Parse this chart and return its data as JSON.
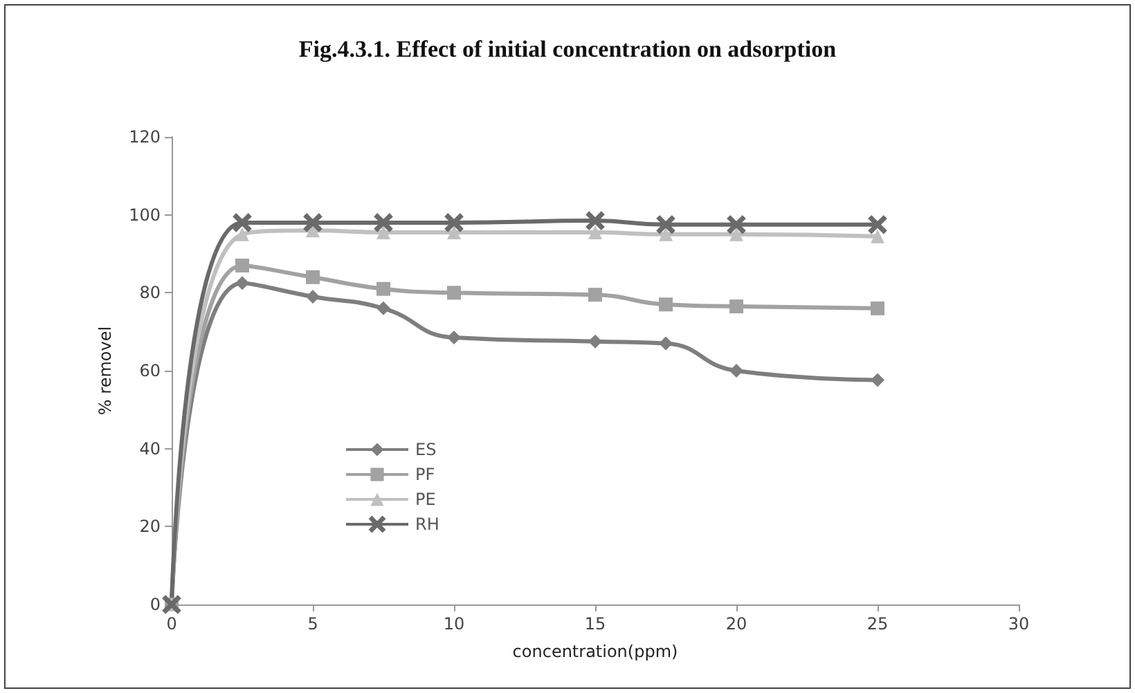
{
  "chart_data": {
    "type": "line",
    "title": "Fig.4.3.1. Effect of initial concentration on adsorption",
    "xlabel": "concentration(ppm)",
    "ylabel": "% removel",
    "x": [
      0,
      2.5,
      5,
      7.5,
      10,
      15,
      17.5,
      20,
      25
    ],
    "series": [
      {
        "name": "ES",
        "color": "#7e7e7e",
        "marker": "diamond",
        "values": [
          0,
          82.5,
          79,
          76,
          68.5,
          67.5,
          67,
          60,
          57.6
        ]
      },
      {
        "name": "PF",
        "color": "#a2a2a2",
        "marker": "square",
        "values": [
          0,
          87,
          84,
          81,
          80,
          79.5,
          77,
          76.5,
          76
        ]
      },
      {
        "name": "PE",
        "color": "#c0c0c0",
        "marker": "triangle",
        "values": [
          0,
          95,
          96,
          95.5,
          95.5,
          95.5,
          95,
          95,
          94.5
        ]
      },
      {
        "name": "RH",
        "color": "#6a6a6a",
        "marker": "cross",
        "values": [
          0,
          98,
          98,
          98,
          98,
          98.5,
          97.5,
          97.5,
          97.5
        ]
      }
    ],
    "xlim": [
      0,
      30
    ],
    "xticks": [
      0,
      5,
      10,
      15,
      20,
      25,
      30
    ],
    "ylim": [
      0,
      120
    ],
    "yticks": [
      0,
      20,
      40,
      60,
      80,
      100,
      120
    ],
    "grid": false,
    "legend": "left"
  }
}
